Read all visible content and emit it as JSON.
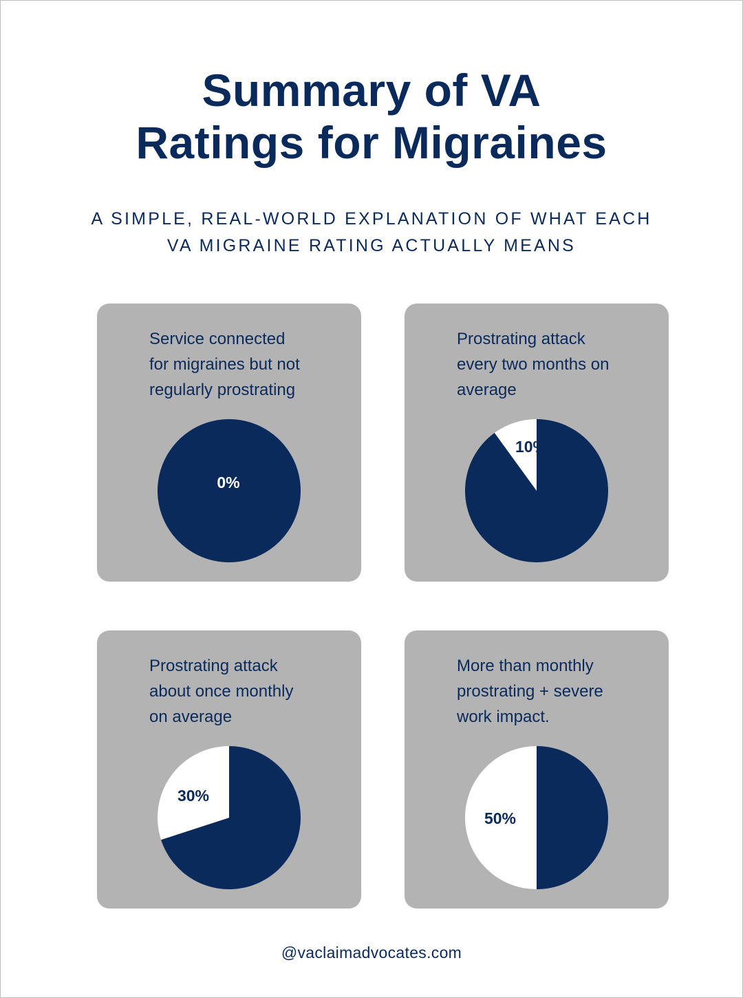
{
  "header": {
    "title_line1": "Summary of VA",
    "title_line2": "Ratings for Migraines",
    "subtitle_line1": "A SIMPLE, REAL-WORLD EXPLANATION OF WHAT EACH",
    "subtitle_line2": "VA MIGRAINE RATING ACTUALLY MEANS"
  },
  "colors": {
    "navy": "#0b2a5c",
    "card_bg": "#b3b3b3",
    "white": "#ffffff"
  },
  "chart_data": [
    {
      "type": "pie",
      "description_lines": [
        "Service connected",
        "for migraines but not",
        "regularly prostrating"
      ],
      "label": "0%",
      "rating": 0,
      "slices": [
        {
          "name": "rating",
          "value": 0,
          "color": "#ffffff"
        },
        {
          "name": "remainder",
          "value": 100,
          "color": "#0b2a5c"
        }
      ]
    },
    {
      "type": "pie",
      "description_lines": [
        "Prostrating attack",
        "every two months on",
        "average"
      ],
      "label": "10%",
      "rating": 10,
      "slices": [
        {
          "name": "rating",
          "value": 10,
          "color": "#ffffff"
        },
        {
          "name": "remainder",
          "value": 90,
          "color": "#0b2a5c"
        }
      ]
    },
    {
      "type": "pie",
      "description_lines": [
        "Prostrating attack",
        "about once monthly",
        "on average"
      ],
      "label": "30%",
      "rating": 30,
      "slices": [
        {
          "name": "rating",
          "value": 30,
          "color": "#ffffff"
        },
        {
          "name": "remainder",
          "value": 70,
          "color": "#0b2a5c"
        }
      ]
    },
    {
      "type": "pie",
      "description_lines": [
        "More than monthly",
        "prostrating + severe",
        "work impact."
      ],
      "label": "50%",
      "rating": 50,
      "slices": [
        {
          "name": "rating",
          "value": 50,
          "color": "#ffffff"
        },
        {
          "name": "remainder",
          "value": 50,
          "color": "#0b2a5c"
        }
      ]
    }
  ],
  "footer": {
    "handle": "@vaclaimadvocates.com"
  }
}
